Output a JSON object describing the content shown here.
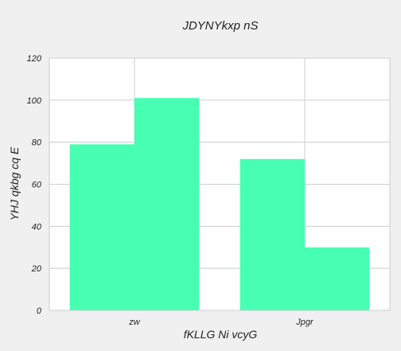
{
  "chart_data": {
    "type": "bar",
    "title": "JDYNYkxp nS",
    "xlabel": "fKLLG Ni vcyG",
    "ylabel": "YHJ qkbg cq E",
    "categories": [
      "zw",
      "Jpgr"
    ],
    "series": [
      {
        "values": [
          79,
          72
        ]
      },
      {
        "values": [
          101,
          30
        ]
      }
    ],
    "ylim": [
      0,
      120
    ],
    "yticks": [
      "0",
      "20",
      "40",
      "60",
      "80",
      "100",
      "120"
    ],
    "grid": true,
    "legend": "none",
    "colors": {
      "bar": "#47ffb2",
      "grid": "#cccccc",
      "axes_bg": "#ffffff",
      "figure_bg": "#f0f0f0",
      "spine": "#cccccc"
    }
  }
}
